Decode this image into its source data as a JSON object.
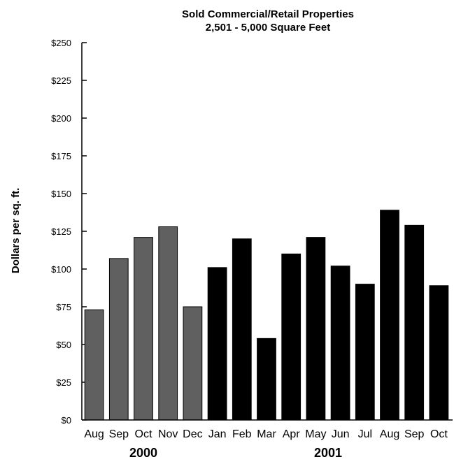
{
  "chart_data": {
    "type": "bar",
    "title": "Sold Commercial/Retail Properties",
    "subtitle": "2,501 - 5,000 Square Feet",
    "ylabel": "Dollars per sq. ft.",
    "xlabel": "",
    "ylim": [
      0,
      250
    ],
    "y_ticks": [
      0,
      25,
      50,
      75,
      100,
      125,
      150,
      175,
      200,
      225,
      250
    ],
    "y_tick_labels": [
      "$0",
      "$25",
      "$50",
      "$75",
      "$100",
      "$125",
      "$150",
      "$175",
      "$200",
      "$225",
      "$250"
    ],
    "categories": [
      "Aug",
      "Sep",
      "Oct",
      "Nov",
      "Dec",
      "Jan",
      "Feb",
      "Mar",
      "Apr",
      "May",
      "Jun",
      "Jul",
      "Aug",
      "Sep",
      "Oct"
    ],
    "values": [
      73,
      107,
      121,
      128,
      75,
      101,
      120,
      54,
      110,
      121,
      102,
      90,
      139,
      129,
      89
    ],
    "groups": [
      {
        "label": "2000",
        "start": 0,
        "count": 5,
        "color": "#606060"
      },
      {
        "label": "2001",
        "start": 5,
        "count": 10,
        "color": "#000000"
      }
    ],
    "grid": false,
    "legend": "none"
  }
}
